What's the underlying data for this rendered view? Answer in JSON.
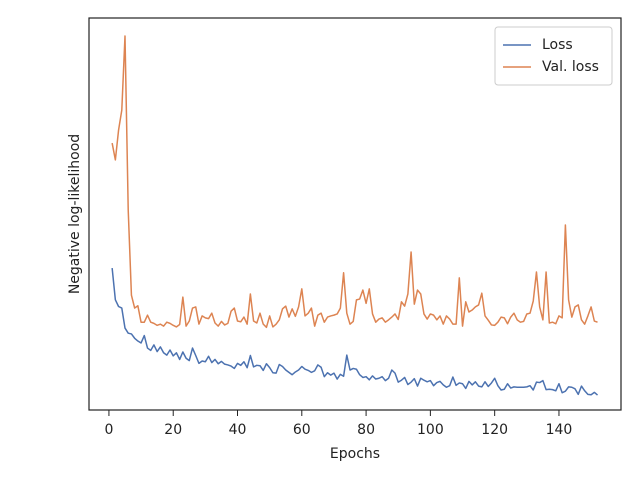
{
  "chart_data": {
    "type": "line",
    "xlabel": "Epochs",
    "ylabel": "Negative log-likelihood",
    "x": [
      1,
      2,
      3,
      4,
      5,
      6,
      7,
      8,
      9,
      10,
      11,
      12,
      13,
      14,
      15,
      16,
      17,
      18,
      19,
      20,
      21,
      22,
      23,
      24,
      25,
      26,
      27,
      28,
      29,
      30,
      31,
      32,
      33,
      34,
      35,
      36,
      37,
      38,
      39,
      40,
      41,
      42,
      43,
      44,
      45,
      46,
      47,
      48,
      49,
      50,
      51,
      52,
      53,
      54,
      55,
      56,
      57,
      58,
      59,
      60,
      61,
      62,
      63,
      64,
      65,
      66,
      67,
      68,
      69,
      70,
      71,
      72,
      73,
      74,
      75,
      76,
      77,
      78,
      79,
      80,
      81,
      82,
      83,
      84,
      85,
      86,
      87,
      88,
      89,
      90,
      91,
      92,
      93,
      94,
      95,
      96,
      97,
      98,
      99,
      100,
      101,
      102,
      103,
      104,
      105,
      106,
      107,
      108,
      109,
      110,
      111,
      112,
      113,
      114,
      115,
      116,
      117,
      118,
      119,
      120,
      121,
      122,
      123,
      124,
      125,
      126,
      127,
      128,
      129,
      130,
      131,
      132,
      133,
      134,
      135,
      136,
      137,
      138,
      139,
      140,
      141,
      142,
      143,
      144,
      145,
      146,
      147,
      148,
      149,
      150,
      151,
      152
    ],
    "series": [
      {
        "name": "Loss",
        "color": "#4c72b0",
        "values": [
          36.2,
          28.1,
          26.4,
          26.0,
          20.9,
          19.6,
          19.4,
          18.3,
          17.6,
          17.1,
          19.0,
          15.8,
          15.2,
          16.6,
          14.9,
          16.1,
          14.6,
          14.0,
          15.3,
          13.8,
          14.6,
          12.9,
          14.8,
          13.2,
          12.6,
          15.8,
          13.9,
          11.9,
          12.5,
          12.3,
          13.7,
          12.1,
          12.9,
          11.8,
          12.4,
          11.7,
          11.5,
          11.2,
          10.6,
          11.9,
          11.4,
          12.3,
          10.8,
          13.9,
          11.0,
          11.4,
          11.3,
          10.1,
          11.8,
          10.8,
          9.5,
          9.4,
          11.6,
          11.1,
          10.2,
          9.6,
          9.0,
          9.7,
          10.2,
          11.1,
          10.4,
          10.1,
          9.6,
          10.0,
          11.5,
          10.9,
          8.5,
          9.5,
          8.9,
          9.4,
          7.9,
          9.1,
          8.6,
          14.0,
          10.2,
          10.6,
          10.4,
          9.0,
          8.3,
          8.5,
          7.7,
          8.7,
          7.9,
          8.1,
          8.5,
          7.5,
          8.1,
          10.2,
          9.4,
          7.1,
          7.6,
          8.3,
          6.5,
          7.1,
          8.0,
          6.1,
          8.1,
          7.6,
          7.2,
          7.5,
          6.2,
          7.0,
          7.3,
          6.4,
          5.8,
          6.2,
          8.4,
          6.3,
          6.9,
          6.7,
          5.5,
          7.3,
          6.4,
          7.2,
          6.1,
          5.9,
          7.2,
          6.0,
          6.9,
          8.1,
          6.2,
          5.1,
          5.3,
          6.7,
          5.6,
          5.9,
          5.8,
          5.8,
          5.8,
          5.9,
          6.2,
          5.1,
          7.1,
          7.0,
          7.5,
          5.2,
          5.3,
          5.2,
          4.9,
          6.7,
          4.4,
          4.8,
          5.9,
          5.8,
          5.4,
          4.0,
          6.1,
          4.9,
          4.0,
          3.9,
          4.5,
          3.8
        ]
      },
      {
        "name": "Val. loss",
        "color": "#dd8452",
        "values": [
          68.1,
          63.8,
          71.4,
          76.5,
          95.4,
          51.0,
          29.3,
          26.0,
          26.6,
          22.4,
          22.4,
          24.2,
          22.4,
          22.1,
          21.6,
          21.9,
          21.4,
          22.4,
          22.1,
          21.6,
          21.2,
          21.8,
          28.8,
          21.4,
          22.7,
          26.0,
          26.3,
          21.9,
          24.0,
          23.5,
          23.3,
          24.7,
          22.2,
          21.4,
          22.6,
          21.7,
          22.1,
          25.2,
          26.0,
          22.7,
          22.5,
          23.7,
          21.9,
          29.6,
          22.7,
          22.2,
          24.7,
          21.9,
          21.1,
          24.0,
          21.2,
          21.9,
          23.0,
          25.8,
          26.5,
          23.7,
          25.8,
          23.9,
          26.3,
          30.9,
          24.0,
          24.7,
          26.0,
          21.4,
          24.2,
          24.7,
          22.4,
          23.7,
          24.0,
          24.2,
          24.5,
          26.0,
          35.0,
          24.7,
          21.9,
          22.6,
          28.1,
          28.3,
          30.6,
          27.2,
          30.9,
          24.5,
          22.4,
          23.2,
          23.5,
          22.4,
          23.0,
          23.7,
          24.5,
          23.1,
          27.6,
          26.5,
          29.6,
          40.3,
          27.0,
          30.6,
          29.6,
          24.5,
          23.2,
          24.5,
          24.2,
          23.0,
          24.0,
          21.9,
          24.0,
          23.2,
          21.9,
          21.9,
          33.7,
          21.4,
          27.6,
          25.0,
          25.5,
          26.3,
          26.8,
          29.8,
          24.0,
          22.9,
          21.7,
          21.6,
          22.4,
          23.7,
          23.5,
          22.0,
          23.7,
          24.7,
          23.0,
          22.4,
          22.6,
          24.5,
          24.7,
          27.8,
          35.2,
          26.3,
          23.0,
          35.2,
          22.2,
          22.4,
          22.0,
          24.0,
          23.5,
          47.2,
          28.1,
          23.7,
          26.3,
          26.8,
          23.0,
          21.9,
          24.0,
          26.3,
          22.7,
          22.4
        ]
      }
    ],
    "xlim": [
      -6.2,
      159.3
    ],
    "ylim": [
      0,
      100
    ],
    "xticks": [
      0,
      20,
      40,
      60,
      80,
      100,
      120,
      140
    ],
    "legend": "upper right"
  }
}
